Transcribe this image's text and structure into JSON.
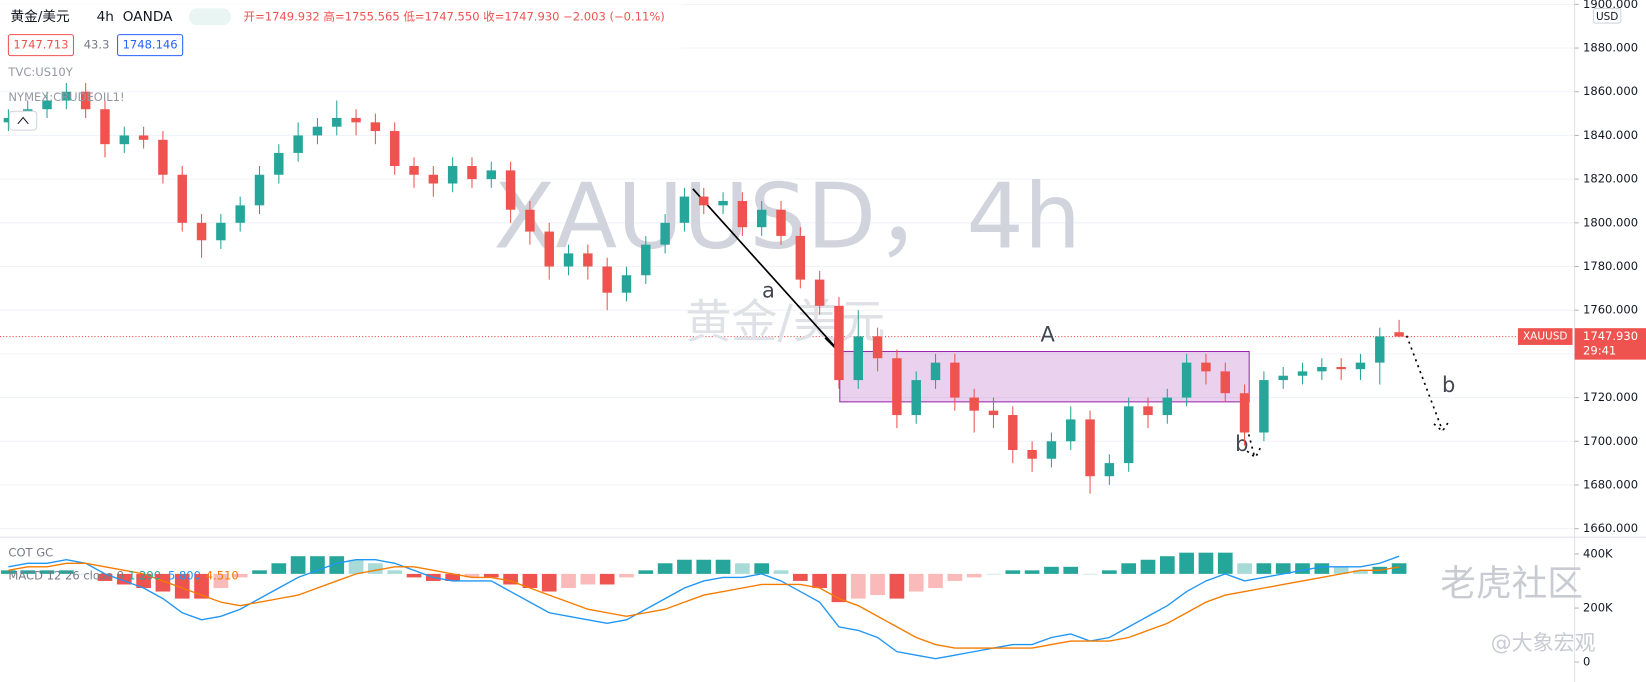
{
  "header": {
    "symbol": "黄金/美元",
    "interval": "4h",
    "source": "OANDA",
    "ohlc": "开=1749.932  高=1755.565  低=1747.550  收=1747.930  −2.003 (−0.11%)",
    "sell": "1747.713",
    "spread": "43.3",
    "buy": "1748.146",
    "overlays": [
      "TVC:US10Y",
      "NYMEX:CRUDEOIL1!"
    ]
  },
  "chart_data": [
    {
      "type": "candlestick",
      "watermark": "XAUUSD，4h",
      "watermark_sub": "黄金/美元",
      "currency": "USD",
      "up_color": "#26a69a",
      "down_color": "#ef5350",
      "price_tag": {
        "symbol": "XAUUSD",
        "price": "1747.930",
        "countdown": "29:41"
      },
      "annotations": [
        "a",
        "A",
        "b",
        "b"
      ],
      "open": [
        1846,
        1848,
        1852,
        1856,
        1860,
        1852,
        1836,
        1840,
        1838,
        1822,
        1800,
        1792,
        1800,
        1808,
        1822,
        1832,
        1840,
        1844,
        1848,
        1846,
        1842,
        1826,
        1822,
        1818,
        1826,
        1820,
        1824,
        1806,
        1796,
        1780,
        1786,
        1780,
        1768,
        1776,
        1790,
        1800,
        1812,
        1808,
        1810,
        1798,
        1806,
        1794,
        1774,
        1762,
        1728,
        1748,
        1738,
        1712,
        1728,
        1736,
        1720,
        1714,
        1712,
        1696,
        1692,
        1700,
        1710,
        1684,
        1690,
        1716,
        1712,
        1720,
        1736,
        1732,
        1722,
        1704,
        1728,
        1730,
        1732,
        1734,
        1733,
        1736,
        1749.932
      ],
      "high": [
        1852,
        1856,
        1860,
        1864,
        1864,
        1856,
        1844,
        1844,
        1842,
        1826,
        1804,
        1804,
        1812,
        1826,
        1836,
        1846,
        1848,
        1856,
        1852,
        1850,
        1846,
        1830,
        1826,
        1830,
        1830,
        1828,
        1828,
        1810,
        1800,
        1790,
        1790,
        1784,
        1780,
        1794,
        1804,
        1816,
        1816,
        1814,
        1814,
        1810,
        1810,
        1798,
        1778,
        1766,
        1760,
        1752,
        1742,
        1732,
        1740,
        1740,
        1724,
        1720,
        1716,
        1700,
        1704,
        1716,
        1714,
        1694,
        1720,
        1720,
        1724,
        1740,
        1740,
        1736,
        1726,
        1732,
        1734,
        1736,
        1738,
        1738,
        1740,
        1752,
        1755.565
      ],
      "low": [
        1842,
        1844,
        1848,
        1852,
        1848,
        1830,
        1832,
        1834,
        1818,
        1796,
        1784,
        1788,
        1796,
        1804,
        1818,
        1828,
        1836,
        1840,
        1840,
        1836,
        1822,
        1816,
        1812,
        1814,
        1816,
        1816,
        1800,
        1790,
        1774,
        1776,
        1774,
        1760,
        1764,
        1772,
        1786,
        1796,
        1804,
        1804,
        1794,
        1794,
        1790,
        1770,
        1758,
        1724,
        1724,
        1732,
        1706,
        1708,
        1724,
        1714,
        1704,
        1706,
        1690,
        1686,
        1688,
        1696,
        1676,
        1680,
        1686,
        1706,
        1708,
        1716,
        1726,
        1718,
        1698,
        1700,
        1724,
        1726,
        1728,
        1728,
        1728,
        1726,
        1747.55
      ],
      "close": [
        1848,
        1852,
        1856,
        1860,
        1852,
        1836,
        1840,
        1838,
        1822,
        1800,
        1792,
        1800,
        1808,
        1822,
        1832,
        1840,
        1844,
        1848,
        1846,
        1842,
        1826,
        1822,
        1818,
        1826,
        1820,
        1824,
        1806,
        1796,
        1780,
        1786,
        1780,
        1768,
        1776,
        1790,
        1800,
        1812,
        1808,
        1810,
        1798,
        1806,
        1794,
        1774,
        1762,
        1728,
        1748,
        1738,
        1712,
        1728,
        1736,
        1720,
        1714,
        1712,
        1696,
        1692,
        1700,
        1710,
        1684,
        1690,
        1716,
        1712,
        1720,
        1736,
        1732,
        1722,
        1704,
        1728,
        1730,
        1732,
        1734,
        1733,
        1736,
        1748,
        1747.93
      ],
      "ylim": [
        1658,
        1902
      ],
      "yticks": [
        {
          "value": 1660,
          "label": "1660.000"
        },
        {
          "value": 1680,
          "label": "1680.000"
        },
        {
          "value": 1700,
          "label": "1700.000"
        },
        {
          "value": 1720,
          "label": "1720.000"
        },
        {
          "value": 1740,
          "label": "1740.000"
        },
        {
          "value": 1760,
          "label": "1760.000"
        },
        {
          "value": 1780,
          "label": "1780.000"
        },
        {
          "value": 1800,
          "label": "1800.000"
        },
        {
          "value": 1820,
          "label": "1820.000"
        },
        {
          "value": 1840,
          "label": "1840.000"
        },
        {
          "value": 1860,
          "label": "1860.000"
        },
        {
          "value": 1880,
          "label": "1880.000"
        },
        {
          "value": 1900,
          "label": "1900.000"
        }
      ],
      "grid": true
    },
    {
      "type": "macd",
      "title": "COT GC",
      "label": "MACD 12 26 close 9",
      "readings": [
        "1.290",
        "5.800",
        "4.510"
      ],
      "histogram": {
        "pos_color": "#26a69a",
        "neg_color": "#ef5350",
        "values": [
          1,
          1,
          1,
          1,
          0,
          -2,
          -3,
          -4,
          -5,
          -7,
          -7,
          -4,
          -1,
          1,
          3,
          5,
          5,
          5,
          4,
          3,
          1,
          -1,
          -2,
          -2,
          -1,
          -1,
          -3,
          -4,
          -5,
          -4,
          -3,
          -3,
          -1,
          1,
          3,
          4,
          4,
          4,
          3,
          3,
          1,
          -2,
          -4,
          -8,
          -7,
          -6,
          -7,
          -5,
          -4,
          -2,
          -1,
          0,
          1,
          1,
          2,
          2,
          0,
          1,
          3,
          4,
          5,
          6,
          6,
          6,
          3,
          3,
          3,
          3,
          3,
          2,
          1,
          2,
          3
        ]
      },
      "macd": {
        "color": "#2196f3",
        "values": [
          2,
          3,
          3,
          4,
          3,
          0,
          -2,
          -4,
          -7,
          -11,
          -13,
          -12,
          -10,
          -7,
          -4,
          -1,
          1,
          3,
          4,
          4,
          3,
          1,
          -1,
          -2,
          -2,
          -2,
          -5,
          -8,
          -11,
          -12,
          -13,
          -14,
          -13,
          -10,
          -7,
          -4,
          -2,
          -1,
          -1,
          0,
          -2,
          -5,
          -8,
          -15,
          -16,
          -18,
          -22,
          -23,
          -24,
          -23,
          -22,
          -21,
          -20,
          -20,
          -18,
          -17,
          -19,
          -18,
          -15,
          -12,
          -9,
          -5,
          -2,
          0,
          -2,
          -1,
          0,
          1,
          2,
          2,
          2,
          3,
          5
        ]
      },
      "signal": {
        "color": "#f57c00",
        "values": [
          1,
          2,
          2,
          3,
          3,
          2,
          1,
          0,
          -2,
          -4,
          -6,
          -8,
          -9,
          -8,
          -7,
          -6,
          -4,
          -2,
          0,
          1,
          2,
          2,
          1,
          0,
          -1,
          -1,
          -2,
          -4,
          -6,
          -8,
          -10,
          -11,
          -12,
          -11,
          -10,
          -8,
          -6,
          -5,
          -4,
          -3,
          -3,
          -3,
          -4,
          -7,
          -9,
          -12,
          -15,
          -18,
          -20,
          -21,
          -21,
          -21,
          -21,
          -21,
          -20,
          -19,
          -19,
          -19,
          -18,
          -16,
          -14,
          -11,
          -8,
          -6,
          -5,
          -4,
          -3,
          -2,
          -1,
          0,
          1,
          1,
          2
        ]
      },
      "ylim": [
        -30,
        8
      ],
      "y2lim": [
        -66000,
        431000
      ],
      "y2ticks": [
        {
          "value": 400000,
          "label": "400K"
        },
        {
          "value": 200000,
          "label": "200K"
        },
        0
      ]
    }
  ],
  "footer": {
    "watermark": "老虎社区",
    "author": "@大象宏观"
  }
}
